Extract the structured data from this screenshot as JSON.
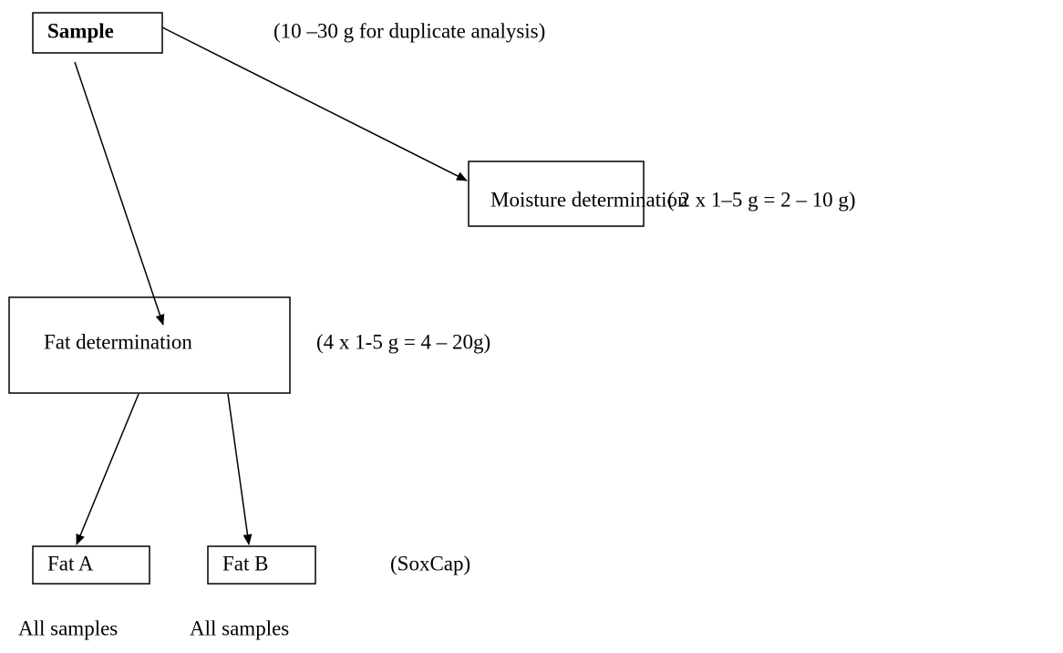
{
  "nodes": [
    {
      "label": "Sample",
      "note": "(10 –30 g for duplicate analysis)"
    },
    {
      "label": "Moisture determination",
      "note": "( 2 x 1–5 g = 2 – 10 g)"
    },
    {
      "label": "Fat determination",
      "note": "(4 x 1-5 g = 4 – 20g)"
    },
    {
      "label": "Fat A",
      "note": "All samples"
    },
    {
      "label": "Fat B",
      "note": "All samples"
    }
  ],
  "method": "(SoxCap)"
}
